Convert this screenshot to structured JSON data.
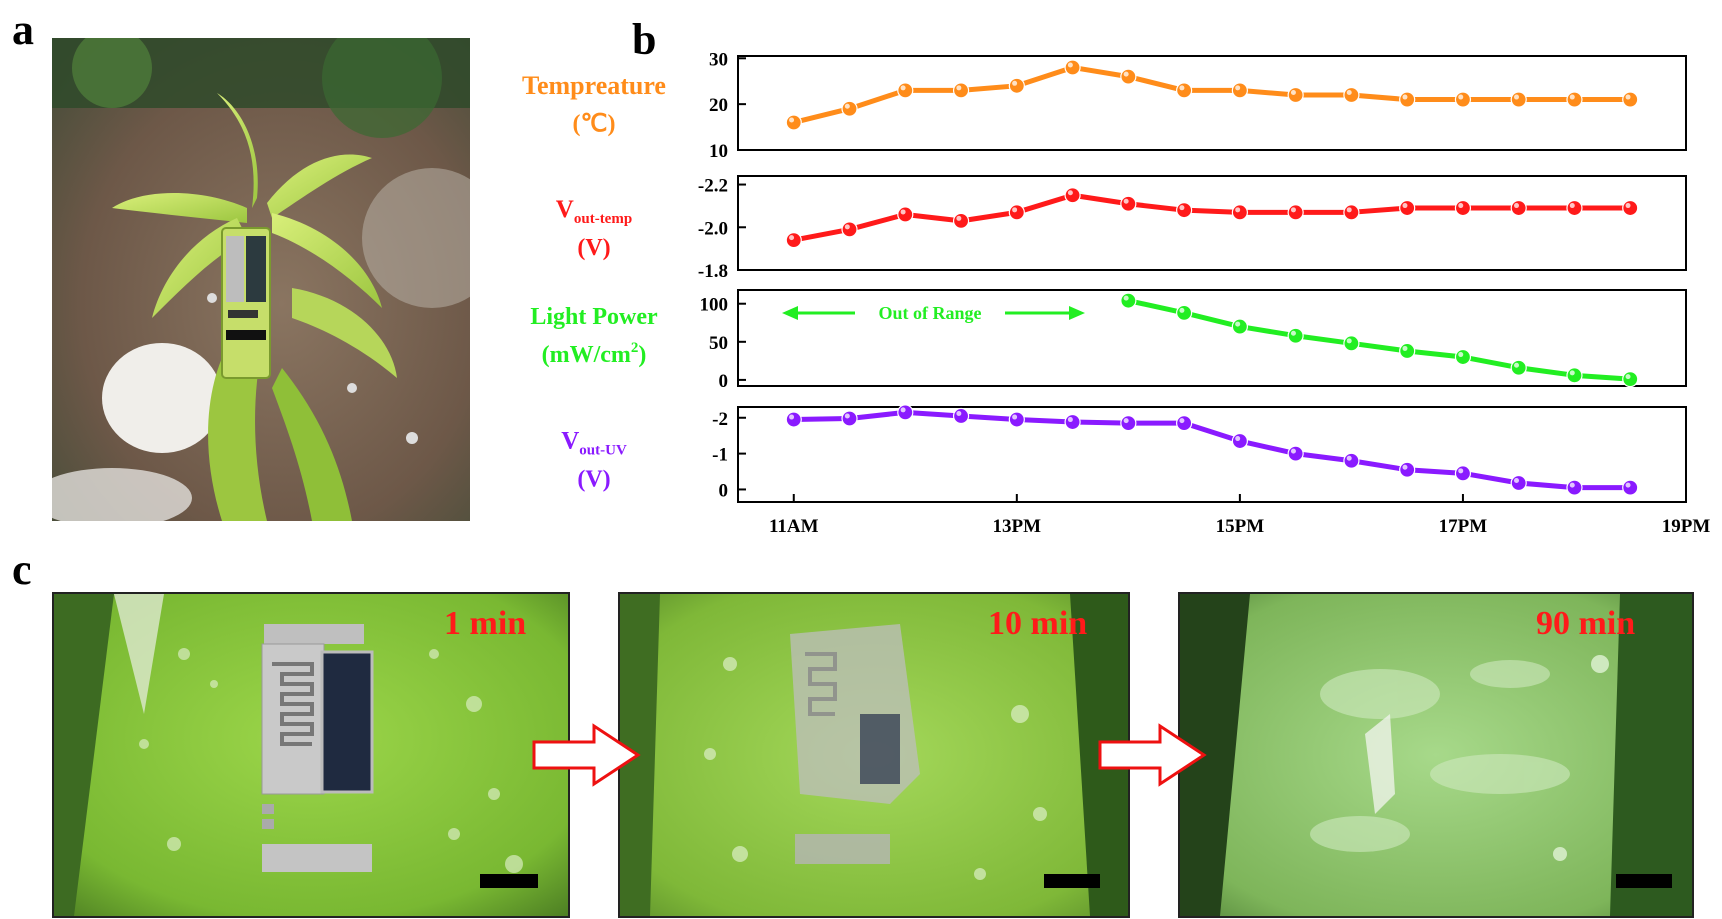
{
  "figure": {
    "panel_a": {
      "label": "a"
    },
    "panel_b": {
      "label": "b"
    },
    "panel_c": {
      "label": "c",
      "photos": [
        {
          "time_label": "1 min"
        },
        {
          "time_label": "10 min"
        },
        {
          "time_label": "90 min"
        }
      ]
    }
  },
  "chart_data": {
    "type": "line",
    "x": [
      "11AM",
      "11:30",
      "12",
      "12:30",
      "13PM",
      "13:30",
      "14",
      "14:30",
      "15PM",
      "15:30",
      "16",
      "16:30",
      "17PM",
      "17:30",
      "18",
      "18:30"
    ],
    "x_numeric": [
      11,
      11.5,
      12,
      12.5,
      13,
      13.5,
      14,
      14.5,
      15,
      15.5,
      16,
      16.5,
      17,
      17.5,
      18,
      18.5
    ],
    "xticks": [
      11,
      13,
      15,
      17,
      19
    ],
    "xtick_labels": [
      "11AM",
      "13PM",
      "15PM",
      "17PM",
      "19PM"
    ],
    "xlim": [
      10.5,
      19
    ],
    "panels": [
      {
        "name": "temperature",
        "ylabel_main": "Tempreature",
        "ylabel_unit": "(℃)",
        "color": "#ff8c1a",
        "ylim": [
          10,
          30.5
        ],
        "yticks": [
          10,
          20,
          30
        ],
        "ytick_labels": [
          "10",
          "20",
          "30"
        ],
        "inverted": false,
        "values": [
          16,
          19,
          23,
          23,
          24,
          28,
          26,
          23,
          23,
          22,
          22,
          21,
          21,
          21,
          21,
          21
        ]
      },
      {
        "name": "vout-temp",
        "ylabel_main": "V",
        "ylabel_sub": "out-temp",
        "ylabel_unit": "(V)",
        "color": "#ff1a1a",
        "ylim": [
          -2.24,
          -1.8
        ],
        "yticks": [
          -2.2,
          -2.0,
          -1.8
        ],
        "ytick_labels": [
          "-2.2",
          "-2.0",
          "-1.8"
        ],
        "inverted": true,
        "values": [
          -1.94,
          -1.99,
          -2.06,
          -2.03,
          -2.07,
          -2.15,
          -2.11,
          -2.08,
          -2.07,
          -2.07,
          -2.07,
          -2.09,
          -2.09,
          -2.09,
          -2.09,
          -2.09
        ]
      },
      {
        "name": "light-power",
        "ylabel_main": "Light Power",
        "ylabel_unit": "(mW/cm",
        "ylabel_sup": "2",
        "ylabel_close": ")",
        "color": "#22ee22",
        "ylim": [
          -8,
          118
        ],
        "yticks": [
          0,
          50,
          100
        ],
        "ytick_labels": [
          "0",
          "50",
          "100"
        ],
        "inverted": false,
        "annotation": "Out of Range",
        "values": [
          null,
          null,
          null,
          null,
          null,
          null,
          104,
          88,
          70,
          58,
          48,
          38,
          30,
          16,
          6,
          1
        ]
      },
      {
        "name": "vout-uv",
        "ylabel_main": "V",
        "ylabel_sub": "out-UV",
        "ylabel_unit": "(V)",
        "color": "#8a1aff",
        "ylim": [
          -2.3,
          0.35
        ],
        "yticks": [
          -2,
          -1,
          0
        ],
        "ytick_labels": [
          "-2",
          "-1",
          "0"
        ],
        "inverted": true,
        "values": [
          -1.95,
          -1.98,
          -2.15,
          -2.05,
          -1.95,
          -1.88,
          -1.85,
          -1.85,
          -1.35,
          -1.0,
          -0.8,
          -0.55,
          -0.45,
          -0.18,
          -0.05,
          -0.05
        ]
      }
    ]
  }
}
